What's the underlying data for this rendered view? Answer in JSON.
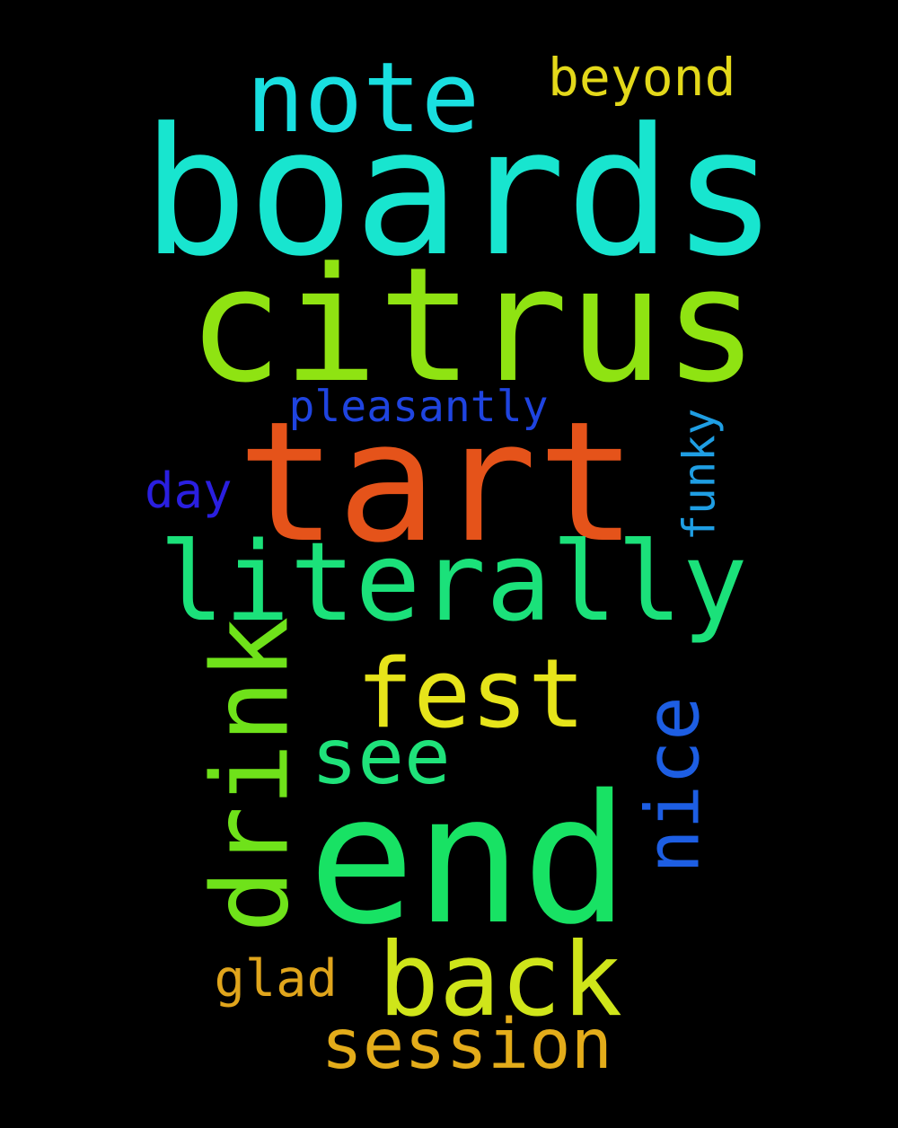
{
  "words": [
    {
      "id": "boards",
      "text": "boards",
      "color": "#18e5cf",
      "vertical": false
    },
    {
      "id": "citrus",
      "text": "citrus",
      "color": "#8fe312",
      "vertical": false
    },
    {
      "id": "tart",
      "text": "tart",
      "color": "#e5531a",
      "vertical": false
    },
    {
      "id": "end",
      "text": "end",
      "color": "#18e264",
      "vertical": false
    },
    {
      "id": "literally",
      "text": "literally",
      "color": "#1be17a",
      "vertical": false
    },
    {
      "id": "note",
      "text": "note",
      "color": "#19dfe0",
      "vertical": false
    },
    {
      "id": "fest",
      "text": "fest",
      "color": "#e6e41a",
      "vertical": false
    },
    {
      "id": "back",
      "text": "back",
      "color": "#cfe51a",
      "vertical": false
    },
    {
      "id": "drink",
      "text": "drink",
      "color": "#6fe21a",
      "vertical": true
    },
    {
      "id": "see",
      "text": "see",
      "color": "#1fe27a",
      "vertical": false
    },
    {
      "id": "nice",
      "text": "nice",
      "color": "#1d5ee3",
      "vertical": true
    },
    {
      "id": "session",
      "text": "session",
      "color": "#e3ac1a",
      "vertical": false
    },
    {
      "id": "beyond",
      "text": "beyond",
      "color": "#e3d81a",
      "vertical": false
    },
    {
      "id": "pleasantly",
      "text": "pleasantly",
      "color": "#1f44e0",
      "vertical": false
    },
    {
      "id": "funky",
      "text": "funky",
      "color": "#1f9ee3",
      "vertical": true
    },
    {
      "id": "day",
      "text": "day",
      "color": "#2a1fe0",
      "vertical": false
    },
    {
      "id": "glad",
      "text": "glad",
      "color": "#e0a51c",
      "vertical": false
    }
  ]
}
